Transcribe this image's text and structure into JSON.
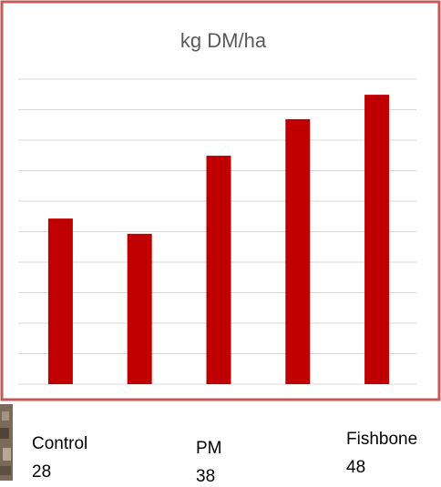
{
  "chart_data": {
    "type": "bar",
    "title": "kg DM/ha",
    "categories": [
      "Control",
      null,
      "PM",
      null,
      "Fishbone"
    ],
    "category_numbers": [
      28,
      null,
      38,
      null,
      48
    ],
    "values": [
      5.43,
      4.93,
      7.49,
      8.69,
      9.49
    ],
    "color": "#c00000",
    "ylim": [
      0,
      10
    ],
    "yticks": [
      0,
      1,
      2,
      3,
      4,
      5,
      6,
      7,
      8,
      9,
      10
    ],
    "grid": true
  }
}
